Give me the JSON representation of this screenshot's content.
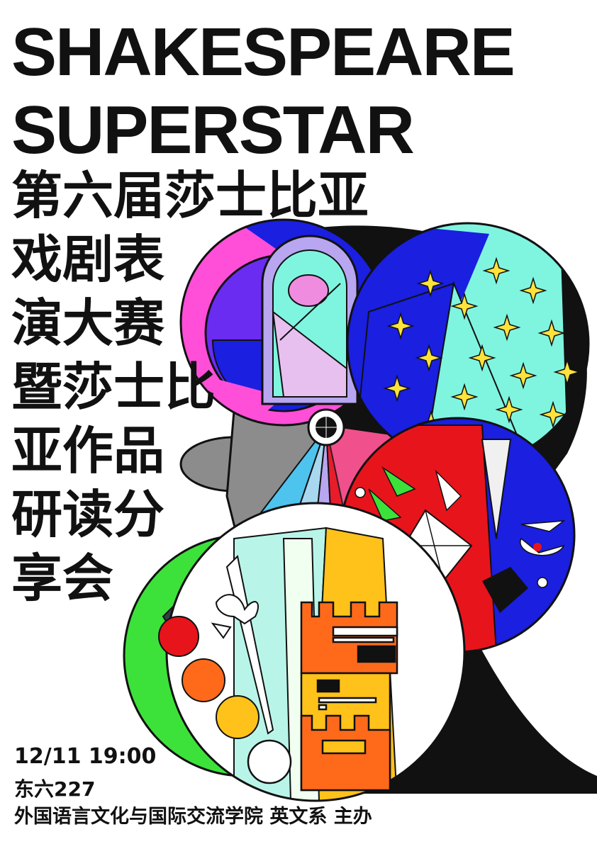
{
  "title_en": [
    "SHAKESPEARE",
    "SUPERSTAR"
  ],
  "title_cn": [
    "第六届莎士比亚",
    "戏剧表",
    "演大赛",
    "暨莎士比",
    "亚作品",
    "研读分",
    "享会"
  ],
  "event": {
    "datetime": "12/11 19:00",
    "venue": "东六227",
    "organizer": "外国语言文化与国际交流学院 英文系 主办"
  },
  "colors": {
    "black": "#111111",
    "magenta": "#ff4fd8",
    "purple": "#6a2cf0",
    "blue": "#1a1fe0",
    "mint": "#7ff5e0",
    "yellow_star": "#ffe23a",
    "red": "#e8141c",
    "green": "#3ce23a",
    "orange": "#ff6a1a",
    "gold": "#ffc21a",
    "gray": "#8c8c8c",
    "pink": "#f0508c",
    "lavender": "#b8a6f0"
  },
  "icons": [
    "star-icon",
    "castle-icon",
    "sword-icon",
    "window-arch-icon",
    "eye-icon"
  ]
}
